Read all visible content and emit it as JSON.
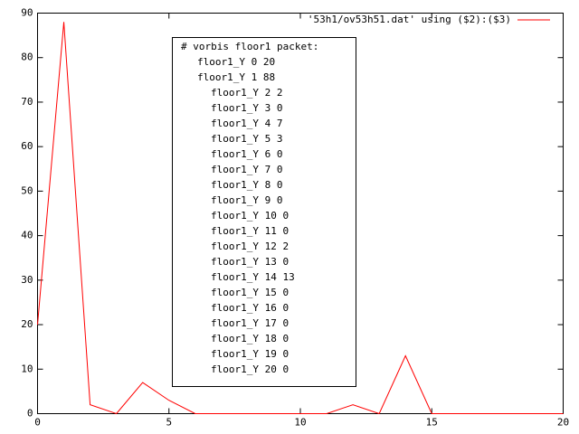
{
  "chart_data": {
    "type": "line",
    "x": [
      0,
      1,
      2,
      3,
      4,
      5,
      6,
      7,
      8,
      9,
      10,
      11,
      12,
      13,
      14,
      15,
      16,
      17,
      18,
      19,
      20
    ],
    "series": [
      {
        "name": "'53h1/ov53h51.dat' using ($2):($3)",
        "color": "#ff0000",
        "values": [
          20,
          88,
          2,
          0,
          7,
          3,
          0,
          0,
          0,
          0,
          0,
          0,
          2,
          0,
          13,
          0,
          0,
          0,
          0,
          0,
          0
        ]
      }
    ],
    "xlim": [
      0,
      20
    ],
    "xticks": [
      0,
      5,
      10,
      15,
      20
    ],
    "ylim": [
      0,
      90
    ],
    "yticks": [
      0,
      10,
      20,
      30,
      40,
      50,
      60,
      70,
      80,
      90
    ],
    "legend": "top-right",
    "annotation": [
      "# vorbis floor1 packet:",
      "floor1_Y 0 20",
      "floor1_Y 1 88",
      "floor1_Y 2 2",
      "floor1_Y 3 0",
      "floor1_Y 4 7",
      "floor1_Y 5 3",
      "floor1_Y 6 0",
      "floor1_Y 7 0",
      "floor1_Y 8 0",
      "floor1_Y 9 0",
      "floor1_Y 10 0",
      "floor1_Y 11 0",
      "floor1_Y 12 2",
      "floor1_Y 13 0",
      "floor1_Y 14 13",
      "floor1_Y 15 0",
      "floor1_Y 16 0",
      "floor1_Y 17 0",
      "floor1_Y 18 0",
      "floor1_Y 19 0",
      "floor1_Y 20 0"
    ]
  }
}
